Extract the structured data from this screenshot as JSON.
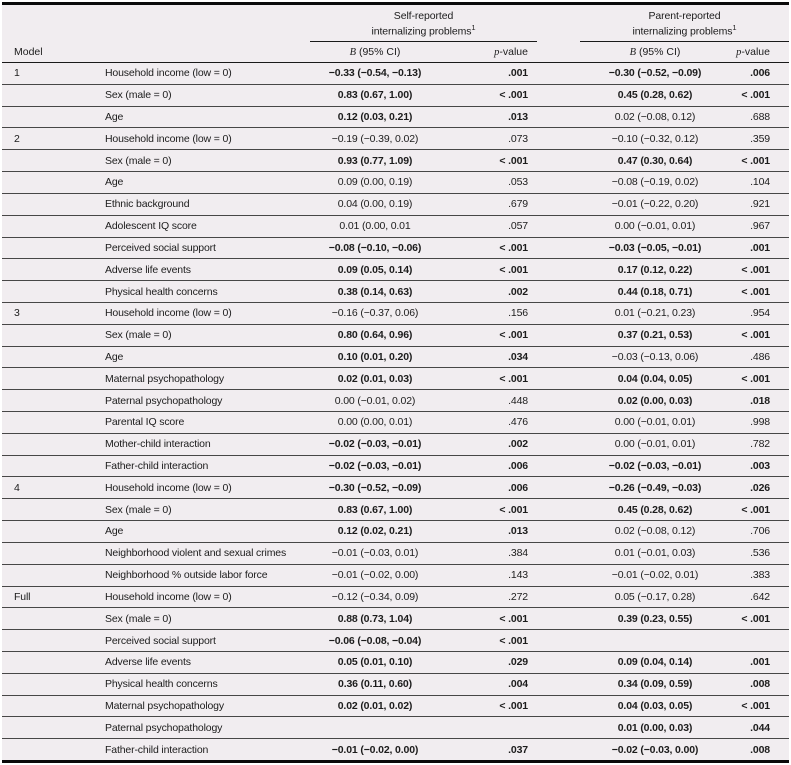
{
  "colors": {
    "sheet_bg": "#f1edf0",
    "rule_dark": "#0a0a0a",
    "text": "#1c1c1c"
  },
  "table": {
    "model_col_header": "Model",
    "groups": [
      {
        "line1": "Self-reported",
        "line2": "internalizing problems",
        "footnote_mark": "1"
      },
      {
        "line1": "Parent-reported",
        "line2": "internalizing problems",
        "footnote_mark": "1"
      }
    ],
    "subheaders": {
      "b_italic": "B",
      "b_rest": " (95% CI)",
      "p_italic": "p",
      "p_rest": "-value"
    },
    "rows": [
      {
        "model": "1",
        "predictor": "Household income (low = 0)",
        "self_b": "−0.33 (−0.54, −0.13)",
        "self_p": ".001",
        "self_bold": true,
        "parent_b": "−0.30 (−0.52, −0.09)",
        "parent_p": ".006",
        "parent_bold": true
      },
      {
        "model": "",
        "predictor": "Sex (male = 0)",
        "self_b": "0.83 (0.67, 1.00)",
        "self_p": "< .001",
        "self_bold": true,
        "parent_b": "0.45 (0.28, 0.62)",
        "parent_p": "< .001",
        "parent_bold": true
      },
      {
        "model": "",
        "predictor": "Age",
        "self_b": "0.12 (0.03, 0.21)",
        "self_p": ".013",
        "self_bold": true,
        "parent_b": "0.02 (−0.08, 0.12)",
        "parent_p": ".688",
        "parent_bold": false
      },
      {
        "model": "2",
        "predictor": "Household income (low = 0)",
        "self_b": "−0.19 (−0.39, 0.02)",
        "self_p": ".073",
        "self_bold": false,
        "parent_b": "−0.10 (−0.32, 0.12)",
        "parent_p": ".359",
        "parent_bold": false
      },
      {
        "model": "",
        "predictor": "Sex (male = 0)",
        "self_b": "0.93 (0.77, 1.09)",
        "self_p": "< .001",
        "self_bold": true,
        "parent_b": "0.47 (0.30, 0.64)",
        "parent_p": "< .001",
        "parent_bold": true
      },
      {
        "model": "",
        "predictor": "Age",
        "self_b": "0.09 (0.00, 0.19)",
        "self_p": ".053",
        "self_bold": false,
        "parent_b": "−0.08 (−0.19, 0.02)",
        "parent_p": ".104",
        "parent_bold": false
      },
      {
        "model": "",
        "predictor": "Ethnic background",
        "self_b": "0.04 (0.00, 0.19)",
        "self_p": ".679",
        "self_bold": false,
        "parent_b": "−0.01 (−0.22, 0.20)",
        "parent_p": ".921",
        "parent_bold": false
      },
      {
        "model": "",
        "predictor": "Adolescent IQ score",
        "self_b": "0.01 (0.00, 0.01",
        "self_p": ".057",
        "self_bold": false,
        "parent_b": "0.00 (−0.01, 0.01)",
        "parent_p": ".967",
        "parent_bold": false
      },
      {
        "model": "",
        "predictor": "Perceived social support",
        "self_b": "−0.08 (−0.10, −0.06)",
        "self_p": "< .001",
        "self_bold": true,
        "parent_b": "−0.03 (−0.05, −0.01)",
        "parent_p": ".001",
        "parent_bold": true
      },
      {
        "model": "",
        "predictor": "Adverse life events",
        "self_b": "0.09 (0.05, 0.14)",
        "self_p": "< .001",
        "self_bold": true,
        "parent_b": "0.17 (0.12, 0.22)",
        "parent_p": "< .001",
        "parent_bold": true
      },
      {
        "model": "",
        "predictor": "Physical health concerns",
        "self_b": "0.38 (0.14, 0.63)",
        "self_p": ".002",
        "self_bold": true,
        "parent_b": "0.44 (0.18, 0.71)",
        "parent_p": "< .001",
        "parent_bold": true
      },
      {
        "model": "3",
        "predictor": "Household income (low = 0)",
        "self_b": "−0.16 (−0.37, 0.06)",
        "self_p": ".156",
        "self_bold": false,
        "parent_b": "0.01 (−0.21, 0.23)",
        "parent_p": ".954",
        "parent_bold": false
      },
      {
        "model": "",
        "predictor": "Sex (male = 0)",
        "self_b": "0.80 (0.64, 0.96)",
        "self_p": "< .001",
        "self_bold": true,
        "parent_b": "0.37 (0.21, 0.53)",
        "parent_p": "< .001",
        "parent_bold": true
      },
      {
        "model": "",
        "predictor": "Age",
        "self_b": "0.10 (0.01, 0.20)",
        "self_p": ".034",
        "self_bold": true,
        "parent_b": "−0.03 (−0.13, 0.06)",
        "parent_p": ".486",
        "parent_bold": false
      },
      {
        "model": "",
        "predictor": "Maternal psychopathology",
        "self_b": "0.02 (0.01, 0.03)",
        "self_p": "< .001",
        "self_bold": true,
        "parent_b": "0.04 (0.04, 0.05)",
        "parent_p": "< .001",
        "parent_bold": true
      },
      {
        "model": "",
        "predictor": "Paternal psychopathology",
        "self_b": "0.00 (−0.01, 0.02)",
        "self_p": ".448",
        "self_bold": false,
        "parent_b": "0.02 (0.00, 0.03)",
        "parent_p": ".018",
        "parent_bold": true
      },
      {
        "model": "",
        "predictor": "Parental IQ score",
        "self_b": "0.00 (0.00, 0.01)",
        "self_p": ".476",
        "self_bold": false,
        "parent_b": "0.00 (−0.01, 0.01)",
        "parent_p": ".998",
        "parent_bold": false
      },
      {
        "model": "",
        "predictor": "Mother-child interaction",
        "self_b": "−0.02 (−0.03, −0.01)",
        "self_p": ".002",
        "self_bold": true,
        "parent_b": "0.00 (−0.01, 0.01)",
        "parent_p": ".782",
        "parent_bold": false
      },
      {
        "model": "",
        "predictor": "Father-child interaction",
        "self_b": "−0.02 (−0.03, −0.01)",
        "self_p": ".006",
        "self_bold": true,
        "parent_b": "−0.02 (−0.03, −0.01)",
        "parent_p": ".003",
        "parent_bold": true
      },
      {
        "model": "4",
        "predictor": "Household income (low = 0)",
        "self_b": "−0.30 (−0.52, −0.09)",
        "self_p": ".006",
        "self_bold": true,
        "parent_b": "−0.26 (−0.49, −0.03)",
        "parent_p": ".026",
        "parent_bold": true
      },
      {
        "model": "",
        "predictor": "Sex (male = 0)",
        "self_b": "0.83 (0.67, 1.00)",
        "self_p": "< .001",
        "self_bold": true,
        "parent_b": "0.45 (0.28, 0.62)",
        "parent_p": "< .001",
        "parent_bold": true
      },
      {
        "model": "",
        "predictor": "Age",
        "self_b": "0.12 (0.02, 0.21)",
        "self_p": ".013",
        "self_bold": true,
        "parent_b": "0.02 (−0.08, 0.12)",
        "parent_p": ".706",
        "parent_bold": false
      },
      {
        "model": "",
        "predictor": "Neighborhood violent and sexual crimes",
        "self_b": "−0.01 (−0.03, 0.01)",
        "self_p": ".384",
        "self_bold": false,
        "parent_b": "0.01 (−0.01, 0.03)",
        "parent_p": ".536",
        "parent_bold": false
      },
      {
        "model": "",
        "predictor": "Neighborhood % outside labor force",
        "self_b": "−0.01 (−0.02, 0.00)",
        "self_p": ".143",
        "self_bold": false,
        "parent_b": "−0.01 (−0.02, 0.01)",
        "parent_p": ".383",
        "parent_bold": false
      },
      {
        "model": "Full",
        "predictor": "Household income (low = 0)",
        "self_b": "−0.12 (−0.34, 0.09)",
        "self_p": ".272",
        "self_bold": false,
        "parent_b": "0.05 (−0.17, 0.28)",
        "parent_p": ".642",
        "parent_bold": false
      },
      {
        "model": "",
        "predictor": "Sex (male = 0)",
        "self_b": "0.88 (0.73, 1.04)",
        "self_p": "< .001",
        "self_bold": true,
        "parent_b": "0.39 (0.23, 0.55)",
        "parent_p": "< .001",
        "parent_bold": true
      },
      {
        "model": "",
        "predictor": "Perceived social support",
        "self_b": "−0.06 (−0.08, −0.04)",
        "self_p": "< .001",
        "self_bold": true,
        "parent_b": "",
        "parent_p": "",
        "parent_bold": false
      },
      {
        "model": "",
        "predictor": "Adverse life events",
        "self_b": "0.05 (0.01, 0.10)",
        "self_p": ".029",
        "self_bold": true,
        "parent_b": "0.09 (0.04, 0.14)",
        "parent_p": ".001",
        "parent_bold": true
      },
      {
        "model": "",
        "predictor": "Physical health concerns",
        "self_b": "0.36 (0.11, 0.60)",
        "self_p": ".004",
        "self_bold": true,
        "parent_b": "0.34 (0.09, 0.59)",
        "parent_p": ".008",
        "parent_bold": true
      },
      {
        "model": "",
        "predictor": "Maternal psychopathology",
        "self_b": "0.02 (0.01, 0.02)",
        "self_p": "< .001",
        "self_bold": true,
        "parent_b": "0.04 (0.03, 0.05)",
        "parent_p": "< .001",
        "parent_bold": true
      },
      {
        "model": "",
        "predictor": "Paternal psychopathology",
        "self_b": "",
        "self_p": "",
        "self_bold": false,
        "parent_b": "0.01 (0.00, 0.03)",
        "parent_p": ".044",
        "parent_bold": true
      },
      {
        "model": "",
        "predictor": "Father-child interaction",
        "self_b": "−0.01 (−0.02, 0.00)",
        "self_p": ".037",
        "self_bold": true,
        "parent_b": "−0.02 (−0.03, 0.00)",
        "parent_p": ".008",
        "parent_bold": true
      }
    ]
  }
}
